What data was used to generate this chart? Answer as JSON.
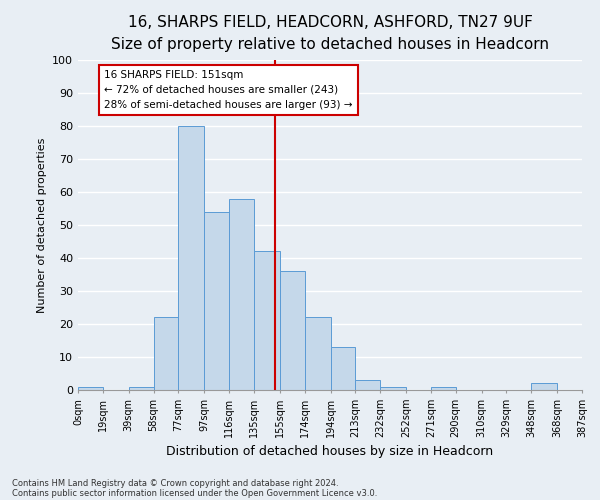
{
  "title": "16, SHARPS FIELD, HEADCORN, ASHFORD, TN27 9UF",
  "subtitle": "Size of property relative to detached houses in Headcorn",
  "xlabel": "Distribution of detached houses by size in Headcorn",
  "ylabel": "Number of detached properties",
  "bin_edges": [
    0,
    19,
    39,
    58,
    77,
    97,
    116,
    135,
    155,
    174,
    194,
    213,
    232,
    252,
    271,
    290,
    310,
    329,
    348,
    368,
    387
  ],
  "bar_heights": [
    1,
    0,
    1,
    22,
    80,
    54,
    58,
    42,
    36,
    22,
    13,
    3,
    1,
    0,
    1,
    0,
    0,
    0,
    2,
    0
  ],
  "bar_color": "#c5d8ea",
  "bar_edge_color": "#5b9bd5",
  "vline_x": 151,
  "vline_color": "#cc0000",
  "ylim": [
    0,
    100
  ],
  "yticks": [
    0,
    10,
    20,
    30,
    40,
    50,
    60,
    70,
    80,
    90,
    100
  ],
  "tick_labels": [
    "0sqm",
    "19sqm",
    "39sqm",
    "58sqm",
    "77sqm",
    "97sqm",
    "116sqm",
    "135sqm",
    "155sqm",
    "174sqm",
    "194sqm",
    "213sqm",
    "232sqm",
    "252sqm",
    "271sqm",
    "290sqm",
    "310sqm",
    "329sqm",
    "348sqm",
    "368sqm",
    "387sqm"
  ],
  "annotation_text": "16 SHARPS FIELD: 151sqm\n← 72% of detached houses are smaller (243)\n28% of semi-detached houses are larger (93) →",
  "annotation_box_color": "#cc0000",
  "footnote1": "Contains HM Land Registry data © Crown copyright and database right 2024.",
  "footnote2": "Contains public sector information licensed under the Open Government Licence v3.0.",
  "bg_color": "#e8eef4",
  "grid_color": "#ffffff",
  "title_fontsize": 11,
  "subtitle_fontsize": 9
}
